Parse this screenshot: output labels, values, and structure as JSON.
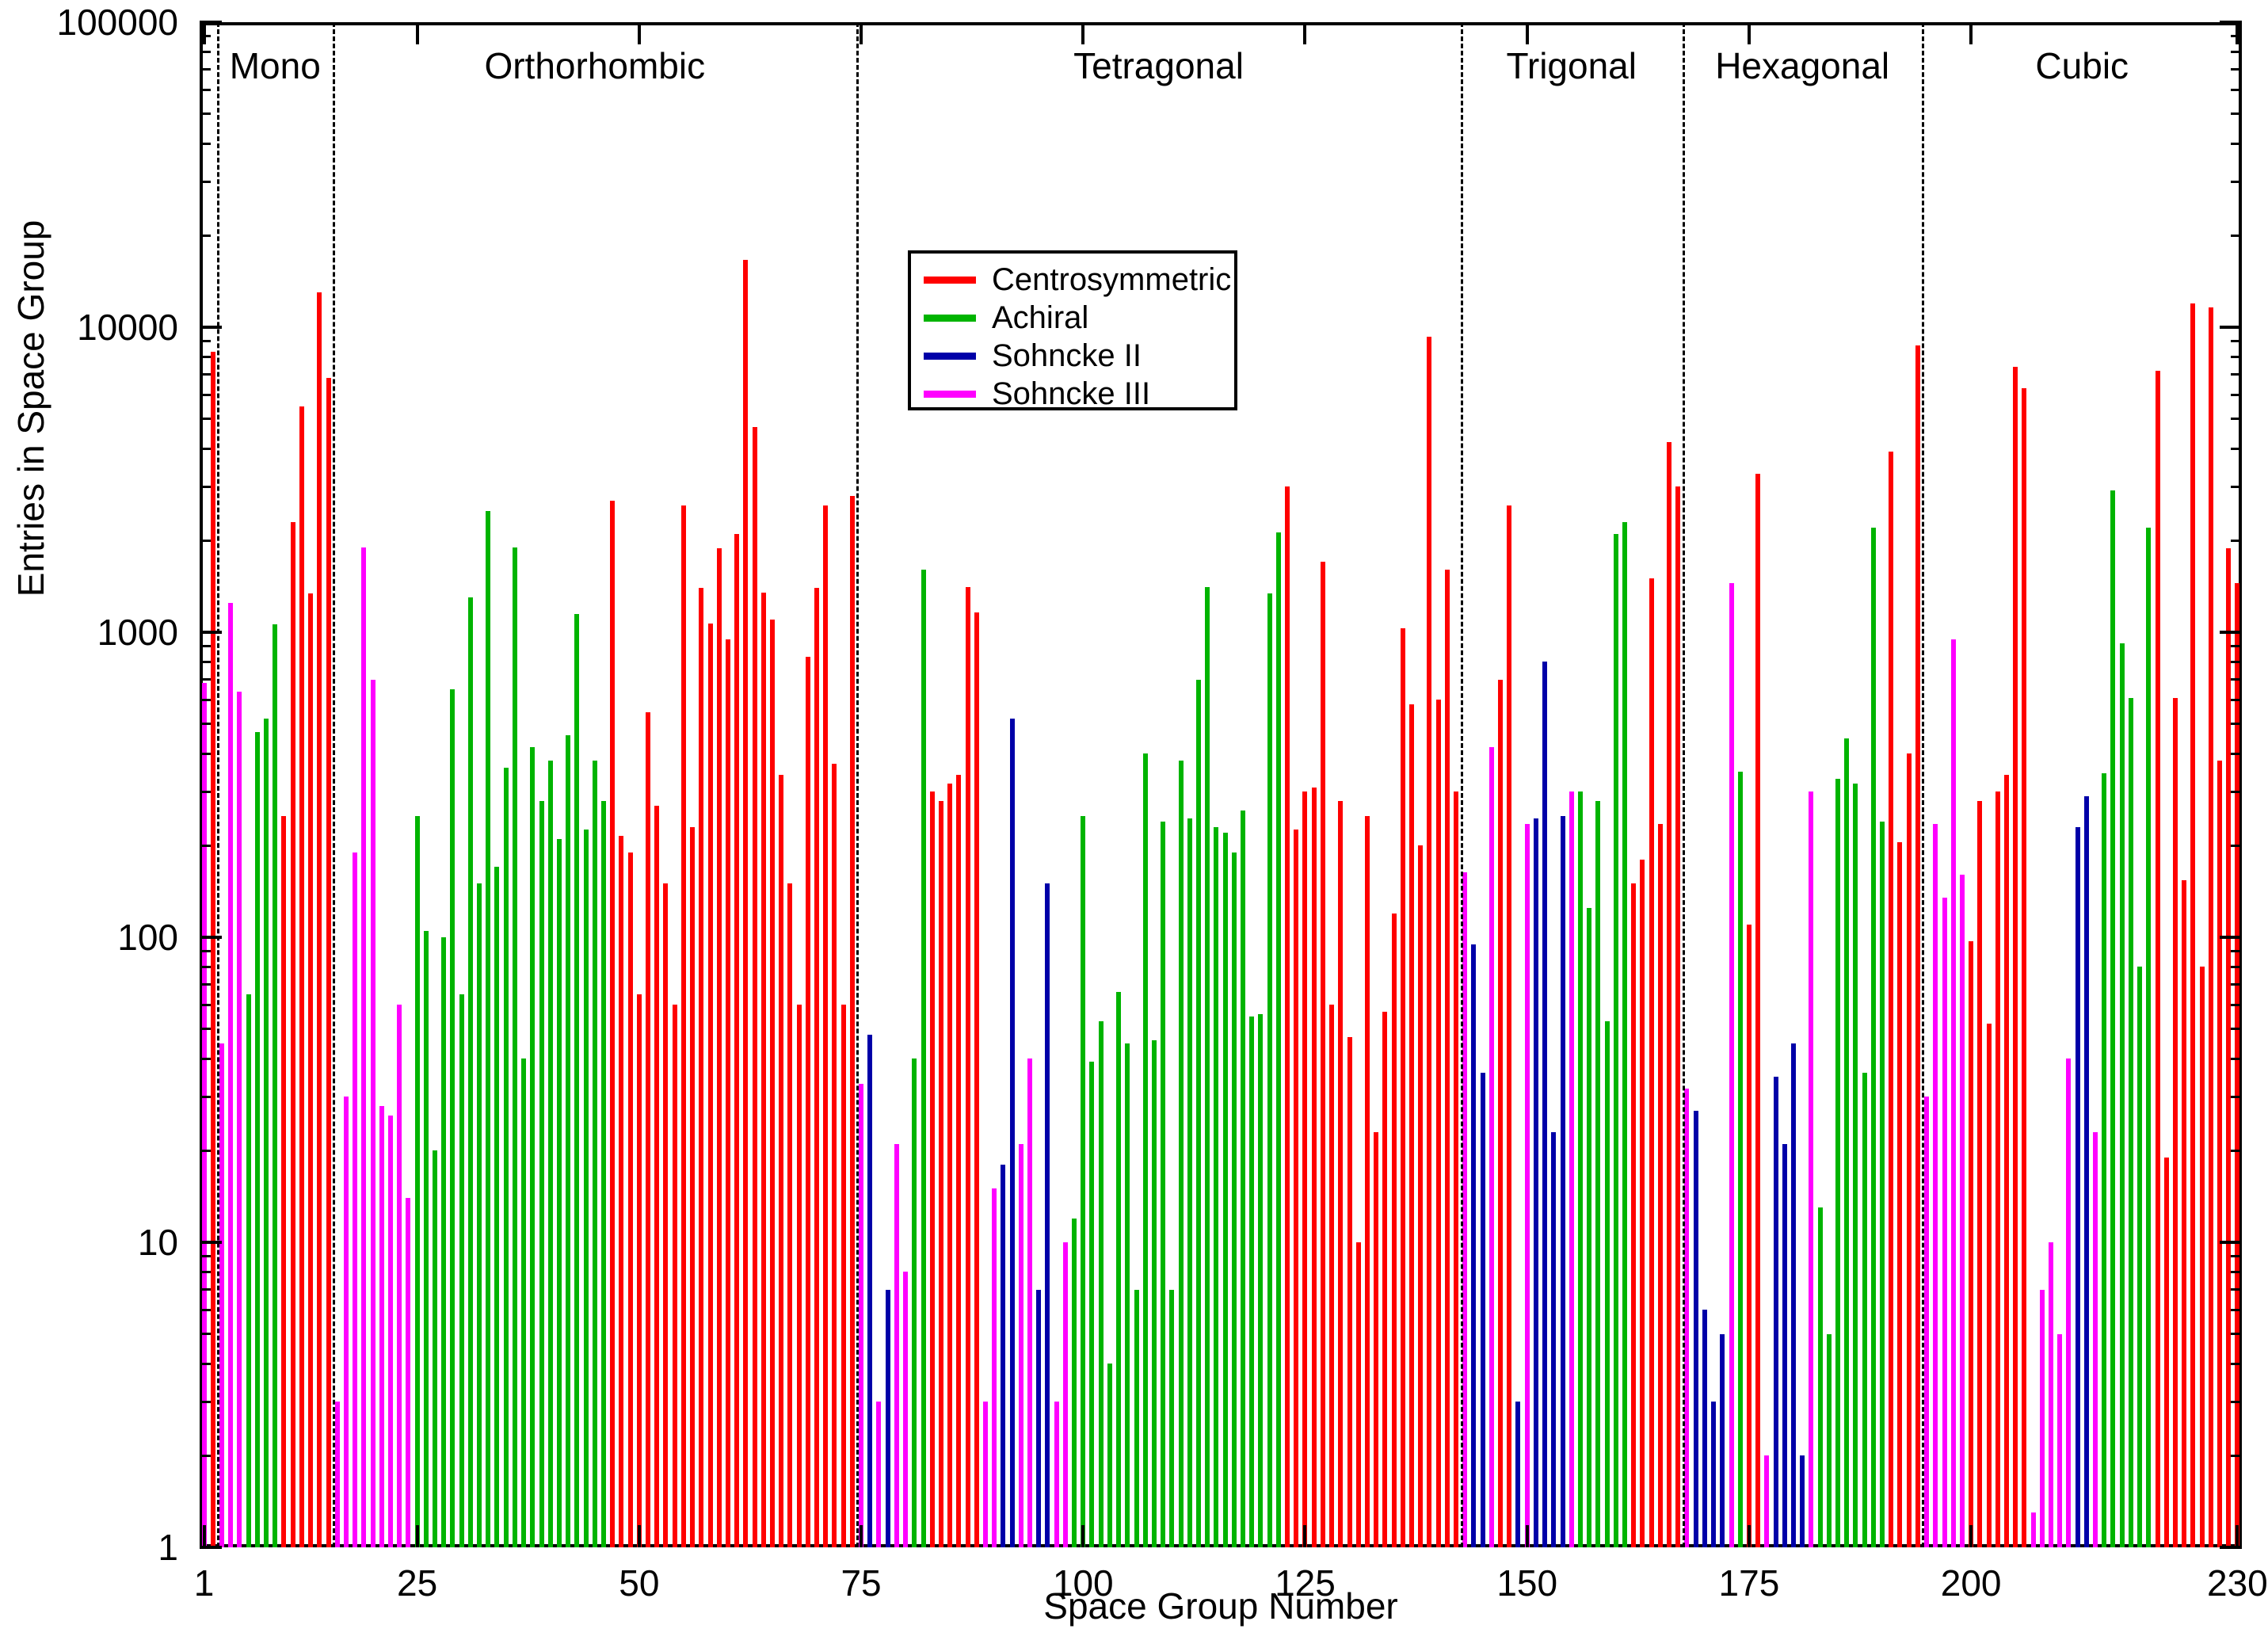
{
  "chart_data": {
    "type": "bar",
    "title": "",
    "xlabel": "Space Group Number",
    "ylabel": "Entries in Space Group",
    "y_scale": "log",
    "ylim": [
      1,
      100000
    ],
    "y_ticks": [
      1,
      10,
      100,
      1000,
      10000,
      100000
    ],
    "x_ticks": [
      1,
      25,
      50,
      75,
      100,
      125,
      150,
      175,
      200,
      230
    ],
    "x_range": [
      1,
      230
    ],
    "grid": false,
    "legend_position": "top-center-inside",
    "regions": [
      {
        "label": "Mono",
        "from": 2.5,
        "to": 15.5
      },
      {
        "label": "Orthorhombic",
        "from": 15.5,
        "to": 74.5
      },
      {
        "label": "Tetragonal",
        "from": 74.5,
        "to": 142.5
      },
      {
        "label": "Trigonal",
        "from": 142.5,
        "to": 167.5
      },
      {
        "label": "Hexagonal",
        "from": 167.5,
        "to": 194.5
      },
      {
        "label": "Cubic",
        "from": 194.5,
        "to": 230.5
      }
    ],
    "region_boundaries": [
      2.5,
      15.5,
      74.5,
      142.5,
      167.5,
      194.5
    ],
    "legend": [
      {
        "label": "Centrosymmetric",
        "class": "C"
      },
      {
        "label": "Achiral",
        "class": "A"
      },
      {
        "label": "Sohncke II",
        "class": "S2"
      },
      {
        "label": "Sohncke III",
        "class": "S3"
      }
    ],
    "colors": {
      "C": "#ff0000",
      "A": "#00b400",
      "S2": "#0000a8",
      "S3": "#ff00ff"
    },
    "series_note": "bars = [space group number, entries, class]",
    "bars": [
      [
        1,
        680,
        "S3"
      ],
      [
        2,
        8300,
        "C"
      ],
      [
        3,
        45,
        "S3"
      ],
      [
        4,
        1250,
        "S3"
      ],
      [
        5,
        640,
        "S3"
      ],
      [
        6,
        65,
        "A"
      ],
      [
        7,
        470,
        "A"
      ],
      [
        8,
        520,
        "A"
      ],
      [
        9,
        1060,
        "A"
      ],
      [
        10,
        250,
        "C"
      ],
      [
        11,
        2300,
        "C"
      ],
      [
        12,
        5500,
        "C"
      ],
      [
        13,
        1340,
        "C"
      ],
      [
        14,
        13000,
        "C"
      ],
      [
        15,
        6800,
        "C"
      ],
      [
        16,
        3,
        "S3"
      ],
      [
        17,
        30,
        "S3"
      ],
      [
        18,
        190,
        "S3"
      ],
      [
        19,
        1900,
        "S3"
      ],
      [
        20,
        700,
        "S3"
      ],
      [
        21,
        28,
        "S3"
      ],
      [
        22,
        26,
        "S3"
      ],
      [
        23,
        60,
        "S3"
      ],
      [
        24,
        14,
        "S3"
      ],
      [
        25,
        250,
        "A"
      ],
      [
        26,
        105,
        "A"
      ],
      [
        27,
        20,
        "A"
      ],
      [
        28,
        100,
        "A"
      ],
      [
        29,
        650,
        "A"
      ],
      [
        30,
        65,
        "A"
      ],
      [
        31,
        1300,
        "A"
      ],
      [
        32,
        150,
        "A"
      ],
      [
        33,
        2500,
        "A"
      ],
      [
        34,
        170,
        "A"
      ],
      [
        35,
        360,
        "A"
      ],
      [
        36,
        1900,
        "A"
      ],
      [
        37,
        40,
        "A"
      ],
      [
        38,
        420,
        "A"
      ],
      [
        39,
        280,
        "A"
      ],
      [
        40,
        380,
        "A"
      ],
      [
        41,
        210,
        "A"
      ],
      [
        42,
        460,
        "A"
      ],
      [
        43,
        1150,
        "A"
      ],
      [
        44,
        225,
        "A"
      ],
      [
        45,
        380,
        "A"
      ],
      [
        46,
        280,
        "A"
      ],
      [
        47,
        2700,
        "C"
      ],
      [
        48,
        215,
        "C"
      ],
      [
        49,
        190,
        "C"
      ],
      [
        50,
        65,
        "C"
      ],
      [
        51,
        545,
        "C"
      ],
      [
        52,
        270,
        "C"
      ],
      [
        53,
        150,
        "C"
      ],
      [
        54,
        60,
        "C"
      ],
      [
        55,
        2600,
        "C"
      ],
      [
        56,
        230,
        "C"
      ],
      [
        57,
        1400,
        "C"
      ],
      [
        58,
        1070,
        "C"
      ],
      [
        59,
        1880,
        "C"
      ],
      [
        60,
        950,
        "C"
      ],
      [
        61,
        2100,
        "C"
      ],
      [
        62,
        16600,
        "C"
      ],
      [
        63,
        4700,
        "C"
      ],
      [
        64,
        1350,
        "C"
      ],
      [
        65,
        1100,
        "C"
      ],
      [
        66,
        340,
        "C"
      ],
      [
        67,
        150,
        "C"
      ],
      [
        68,
        60,
        "C"
      ],
      [
        69,
        830,
        "C"
      ],
      [
        70,
        1400,
        "C"
      ],
      [
        71,
        2600,
        "C"
      ],
      [
        72,
        370,
        "C"
      ],
      [
        73,
        60,
        "C"
      ],
      [
        74,
        2800,
        "C"
      ],
      [
        75,
        33,
        "S3"
      ],
      [
        76,
        48,
        "S2"
      ],
      [
        77,
        3,
        "S3"
      ],
      [
        78,
        7,
        "S2"
      ],
      [
        79,
        21,
        "S3"
      ],
      [
        80,
        8,
        "S3"
      ],
      [
        81,
        40,
        "A"
      ],
      [
        82,
        1600,
        "A"
      ],
      [
        83,
        300,
        "C"
      ],
      [
        84,
        280,
        "C"
      ],
      [
        85,
        320,
        "C"
      ],
      [
        86,
        340,
        "C"
      ],
      [
        87,
        1410,
        "C"
      ],
      [
        88,
        1160,
        "C"
      ],
      [
        89,
        3,
        "S3"
      ],
      [
        90,
        15,
        "S3"
      ],
      [
        91,
        18,
        "S2"
      ],
      [
        92,
        520,
        "S2"
      ],
      [
        93,
        21,
        "S3"
      ],
      [
        94,
        40,
        "S3"
      ],
      [
        95,
        7,
        "S2"
      ],
      [
        96,
        150,
        "S2"
      ],
      [
        97,
        3,
        "S3"
      ],
      [
        98,
        10,
        "S3"
      ],
      [
        99,
        12,
        "A"
      ],
      [
        100,
        250,
        "A"
      ],
      [
        101,
        39,
        "A"
      ],
      [
        102,
        53,
        "A"
      ],
      [
        103,
        4,
        "A"
      ],
      [
        104,
        66,
        "A"
      ],
      [
        105,
        45,
        "A"
      ],
      [
        106,
        7,
        "A"
      ],
      [
        107,
        400,
        "A"
      ],
      [
        108,
        46,
        "A"
      ],
      [
        109,
        240,
        "A"
      ],
      [
        110,
        7,
        "A"
      ],
      [
        111,
        380,
        "A"
      ],
      [
        112,
        245,
        "A"
      ],
      [
        113,
        700,
        "A"
      ],
      [
        114,
        1410,
        "A"
      ],
      [
        115,
        230,
        "A"
      ],
      [
        116,
        220,
        "A"
      ],
      [
        117,
        190,
        "A"
      ],
      [
        118,
        260,
        "A"
      ],
      [
        119,
        55,
        "A"
      ],
      [
        120,
        56,
        "A"
      ],
      [
        121,
        1340,
        "A"
      ],
      [
        122,
        2120,
        "A"
      ],
      [
        123,
        3000,
        "C"
      ],
      [
        124,
        226,
        "C"
      ],
      [
        125,
        300,
        "C"
      ],
      [
        126,
        310,
        "C"
      ],
      [
        127,
        1700,
        "C"
      ],
      [
        128,
        60,
        "C"
      ],
      [
        129,
        280,
        "C"
      ],
      [
        130,
        47,
        "C"
      ],
      [
        131,
        10,
        "C"
      ],
      [
        132,
        250,
        "C"
      ],
      [
        133,
        23,
        "C"
      ],
      [
        134,
        57,
        "C"
      ],
      [
        135,
        120,
        "C"
      ],
      [
        136,
        1030,
        "C"
      ],
      [
        137,
        580,
        "C"
      ],
      [
        138,
        200,
        "C"
      ],
      [
        139,
        9300,
        "C"
      ],
      [
        140,
        600,
        "C"
      ],
      [
        141,
        1600,
        "C"
      ],
      [
        142,
        300,
        "C"
      ],
      [
        143,
        163,
        "S3"
      ],
      [
        144,
        95,
        "S2"
      ],
      [
        145,
        36,
        "S2"
      ],
      [
        146,
        420,
        "S3"
      ],
      [
        147,
        700,
        "C"
      ],
      [
        148,
        2600,
        "C"
      ],
      [
        149,
        3,
        "S2"
      ],
      [
        150,
        235,
        "S3"
      ],
      [
        151,
        245,
        "S2"
      ],
      [
        152,
        800,
        "S2"
      ],
      [
        153,
        23,
        "S2"
      ],
      [
        154,
        250,
        "S2"
      ],
      [
        155,
        300,
        "S3"
      ],
      [
        156,
        300,
        "A"
      ],
      [
        157,
        125,
        "A"
      ],
      [
        158,
        280,
        "A"
      ],
      [
        159,
        53,
        "A"
      ],
      [
        160,
        2100,
        "A"
      ],
      [
        161,
        2300,
        "A"
      ],
      [
        162,
        150,
        "C"
      ],
      [
        163,
        180,
        "C"
      ],
      [
        164,
        1500,
        "C"
      ],
      [
        165,
        235,
        "C"
      ],
      [
        166,
        4200,
        "C"
      ],
      [
        167,
        3000,
        "C"
      ],
      [
        168,
        32,
        "S3"
      ],
      [
        169,
        27,
        "S2"
      ],
      [
        170,
        6,
        "S2"
      ],
      [
        171,
        3,
        "S2"
      ],
      [
        172,
        5,
        "S2"
      ],
      [
        173,
        1450,
        "S3"
      ],
      [
        174,
        350,
        "A"
      ],
      [
        175,
        110,
        "C"
      ],
      [
        176,
        3300,
        "C"
      ],
      [
        177,
        2,
        "S3"
      ],
      [
        178,
        35,
        "S2"
      ],
      [
        179,
        21,
        "S2"
      ],
      [
        180,
        45,
        "S2"
      ],
      [
        181,
        2,
        "S2"
      ],
      [
        182,
        300,
        "S3"
      ],
      [
        183,
        13,
        "A"
      ],
      [
        184,
        5,
        "A"
      ],
      [
        185,
        330,
        "A"
      ],
      [
        186,
        450,
        "A"
      ],
      [
        187,
        320,
        "A"
      ],
      [
        188,
        36,
        "A"
      ],
      [
        189,
        2200,
        "A"
      ],
      [
        190,
        240,
        "A"
      ],
      [
        191,
        3900,
        "C"
      ],
      [
        192,
        205,
        "C"
      ],
      [
        193,
        400,
        "C"
      ],
      [
        194,
        8700,
        "C"
      ],
      [
        195,
        30,
        "S3"
      ],
      [
        196,
        235,
        "S3"
      ],
      [
        197,
        135,
        "S3"
      ],
      [
        198,
        950,
        "S3"
      ],
      [
        199,
        160,
        "S3"
      ],
      [
        200,
        97,
        "C"
      ],
      [
        201,
        280,
        "C"
      ],
      [
        202,
        52,
        "C"
      ],
      [
        203,
        300,
        "C"
      ],
      [
        204,
        340,
        "C"
      ],
      [
        205,
        7400,
        "C"
      ],
      [
        206,
        6300,
        "C"
      ],
      [
        207,
        1.3,
        "S3"
      ],
      [
        208,
        7,
        "S3"
      ],
      [
        209,
        10,
        "S3"
      ],
      [
        210,
        5,
        "S3"
      ],
      [
        211,
        40,
        "S3"
      ],
      [
        212,
        230,
        "S2"
      ],
      [
        213,
        290,
        "S2"
      ],
      [
        214,
        23,
        "S3"
      ],
      [
        215,
        345,
        "A"
      ],
      [
        216,
        2920,
        "A"
      ],
      [
        217,
        920,
        "A"
      ],
      [
        218,
        610,
        "A"
      ],
      [
        219,
        80,
        "A"
      ],
      [
        220,
        2200,
        "A"
      ],
      [
        221,
        7200,
        "C"
      ],
      [
        222,
        19,
        "C"
      ],
      [
        223,
        610,
        "C"
      ],
      [
        224,
        154,
        "C"
      ],
      [
        225,
        12000,
        "C"
      ],
      [
        226,
        80,
        "C"
      ],
      [
        227,
        11600,
        "C"
      ],
      [
        228,
        380,
        "C"
      ],
      [
        229,
        1880,
        "C"
      ],
      [
        230,
        1450,
        "C"
      ]
    ]
  }
}
